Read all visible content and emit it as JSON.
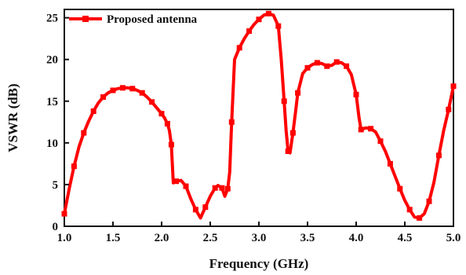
{
  "chart_data": {
    "type": "line",
    "xlabel": "Frequency (GHz)",
    "ylabel": "VSWR (dB)",
    "xlim": [
      1.0,
      5.0
    ],
    "ylim": [
      0,
      26
    ],
    "xticks": [
      1.0,
      1.5,
      2.0,
      2.5,
      3.0,
      3.5,
      4.0,
      4.5,
      5.0
    ],
    "xtick_labels": [
      "1.0",
      "1.5",
      "2.0",
      "2.5",
      "3.0",
      "3.5",
      "4.0",
      "4.5",
      "5.0"
    ],
    "yticks": [
      0,
      5,
      10,
      15,
      20,
      25
    ],
    "ytick_labels": [
      "0",
      "5",
      "10",
      "15",
      "20",
      "25"
    ],
    "grid": false,
    "legend_position": "top-left",
    "colors": {
      "series": "#ff0000",
      "axis": "#111111"
    },
    "series": [
      {
        "name": "Proposed antenna",
        "marker": "square",
        "x": [
          1.0,
          1.05,
          1.1,
          1.15,
          1.2,
          1.25,
          1.3,
          1.35,
          1.4,
          1.45,
          1.5,
          1.55,
          1.6,
          1.65,
          1.7,
          1.75,
          1.8,
          1.85,
          1.9,
          1.95,
          2.0,
          2.03,
          2.06,
          2.08,
          2.1,
          2.12,
          2.15,
          2.2,
          2.25,
          2.3,
          2.35,
          2.4,
          2.45,
          2.5,
          2.55,
          2.58,
          2.62,
          2.65,
          2.68,
          2.7,
          2.72,
          2.75,
          2.8,
          2.85,
          2.9,
          2.95,
          3.0,
          3.05,
          3.1,
          3.15,
          3.2,
          3.23,
          3.26,
          3.28,
          3.3,
          3.32,
          3.35,
          3.38,
          3.4,
          3.45,
          3.5,
          3.55,
          3.6,
          3.65,
          3.7,
          3.75,
          3.8,
          3.85,
          3.9,
          3.95,
          4.0,
          4.03,
          4.05,
          4.1,
          4.15,
          4.2,
          4.25,
          4.3,
          4.35,
          4.4,
          4.45,
          4.5,
          4.55,
          4.6,
          4.65,
          4.7,
          4.75,
          4.8,
          4.85,
          4.9,
          4.95,
          5.0
        ],
        "y": [
          1.5,
          4.5,
          7.2,
          9.5,
          11.2,
          12.6,
          13.8,
          14.8,
          15.5,
          16.0,
          16.3,
          16.5,
          16.6,
          16.6,
          16.5,
          16.3,
          16.0,
          15.5,
          14.9,
          14.2,
          13.5,
          13.0,
          12.3,
          11.5,
          9.8,
          5.2,
          5.4,
          5.5,
          4.8,
          3.3,
          2.0,
          1.0,
          2.3,
          3.6,
          4.6,
          4.9,
          4.6,
          3.6,
          4.5,
          6.5,
          12.5,
          20.0,
          21.4,
          22.5,
          23.4,
          24.2,
          24.8,
          25.3,
          25.5,
          25.3,
          24.0,
          20.0,
          15.0,
          11.5,
          9.0,
          8.8,
          11.2,
          14.0,
          16.0,
          18.3,
          19.0,
          19.4,
          19.6,
          19.5,
          19.2,
          19.3,
          19.7,
          19.6,
          19.2,
          18.2,
          15.8,
          13.0,
          11.6,
          11.8,
          11.7,
          11.3,
          10.2,
          9.0,
          7.5,
          6.0,
          4.5,
          3.1,
          2.0,
          1.1,
          1.0,
          1.5,
          3.0,
          5.3,
          8.5,
          11.5,
          14.0,
          16.8
        ]
      }
    ]
  }
}
